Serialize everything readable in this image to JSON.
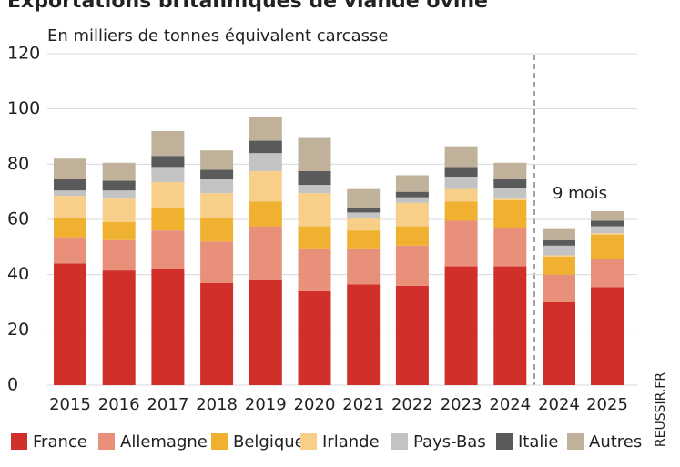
{
  "chart_data": {
    "type": "stacked-bar",
    "title": "Exportations britanniques de viande ovine",
    "subtitle": "En milliers de tonnes équivalent carcasse",
    "annotation": "9 mois",
    "source": "REUSSIR.FR",
    "categories": [
      "2015",
      "2016",
      "2017",
      "2018",
      "2019",
      "2020",
      "2021",
      "2022",
      "2023",
      "2024",
      "2024",
      "2025"
    ],
    "series": [
      {
        "name": "France",
        "color": "#d12f2a",
        "values": [
          44,
          41.5,
          42,
          37,
          38,
          34,
          36.5,
          36,
          43,
          43,
          30,
          35.5
        ]
      },
      {
        "name": "Allemagne",
        "color": "#e8907a",
        "values": [
          9.5,
          11,
          14,
          15,
          19.5,
          15.5,
          13,
          14.5,
          16.5,
          14,
          10,
          10
        ]
      },
      {
        "name": "Belgique",
        "color": "#f0b030",
        "values": [
          7,
          6.5,
          8,
          8.5,
          9,
          8,
          6.5,
          7,
          7,
          10,
          6.5,
          9
        ]
      },
      {
        "name": "Irlande",
        "color": "#f8cf88",
        "values": [
          8,
          8.5,
          9.5,
          9,
          11,
          12,
          4.5,
          8.5,
          4.5,
          0.5,
          0.5,
          0.5
        ]
      },
      {
        "name": "Pays-Bas",
        "color": "#c3c3c3",
        "values": [
          2,
          3,
          5.5,
          5,
          6.5,
          3,
          2,
          2,
          4.5,
          4,
          3.5,
          2.5
        ]
      },
      {
        "name": "Italie",
        "color": "#5a5a5a",
        "values": [
          4,
          3.5,
          4,
          3.5,
          4.5,
          5,
          1.5,
          2,
          3.5,
          3,
          2,
          2
        ]
      },
      {
        "name": "Autres",
        "color": "#c0b29a",
        "values": [
          7.5,
          6.5,
          9,
          7,
          8.5,
          12,
          7,
          6,
          7.5,
          6,
          4,
          3.5
        ]
      }
    ],
    "ylim": [
      0,
      120
    ],
    "yticks": [
      0,
      20,
      40,
      60,
      80,
      100,
      120
    ],
    "grid": true
  }
}
